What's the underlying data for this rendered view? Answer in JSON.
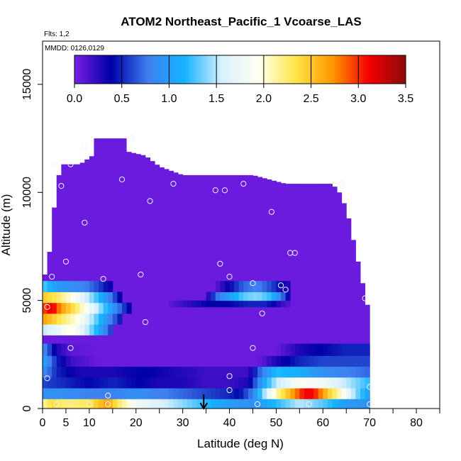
{
  "chart_data": {
    "type": "heatmap",
    "title": "ATOM2 Northeast_Pacific_1 Vcoarse_LAS",
    "flights_note": "Flts: 1,2",
    "dates_note": "MMDD: 0126,0129",
    "xlabel": "Latitude (deg N)",
    "ylabel": "Altitude (m)",
    "xlim": [
      0,
      85
    ],
    "ylim": [
      0,
      17000
    ],
    "x_ticks": [
      0,
      5,
      10,
      20,
      30,
      40,
      50,
      60,
      70,
      80
    ],
    "y_ticks": [
      0,
      5000,
      10000,
      15000
    ],
    "colorbar": {
      "min": 0,
      "max": 3.5,
      "ticks": [
        0.0,
        0.5,
        1.0,
        1.5,
        2.0,
        2.5,
        3.0,
        3.5
      ],
      "tick_labels": [
        "0.0",
        "0.5",
        "1.0",
        "1.5",
        "2.0",
        "2.5",
        "3.0",
        "3.5"
      ],
      "colors": [
        "#7b1fe6",
        "#0000a8",
        "#3f7ff0",
        "#14b4ff",
        "#d8f0ff",
        "#fffff0",
        "#ffe64b",
        "#ff9900",
        "#f40000",
        "#8c0a0a"
      ]
    },
    "top_profile": [
      [
        1,
        6200
      ],
      [
        2,
        8300
      ],
      [
        3,
        10300
      ],
      [
        4,
        11300
      ],
      [
        8,
        11300
      ],
      [
        12,
        11900
      ],
      [
        18,
        11900
      ],
      [
        22,
        11700
      ],
      [
        25,
        11200
      ],
      [
        30,
        10800
      ],
      [
        35,
        10800
      ],
      [
        40,
        10800
      ],
      [
        45,
        10800
      ],
      [
        52,
        10400
      ],
      [
        57,
        10400
      ],
      [
        62,
        10400
      ],
      [
        63.5,
        10000
      ],
      [
        64.5,
        9500
      ],
      [
        65.5,
        8800
      ],
      [
        66.5,
        7800
      ],
      [
        67.5,
        6800
      ],
      [
        68.5,
        5800
      ],
      [
        69.5,
        4800
      ],
      [
        70,
        3500
      ]
    ],
    "plateau": {
      "x": [
        11,
        18
      ],
      "top": 12500
    },
    "default_value": 0.05,
    "layers": [
      {
        "y": [
          0,
          450
        ],
        "x": [
          0,
          70
        ],
        "values": [
          [
            0,
            2.1
          ],
          [
            2,
            2.4
          ],
          [
            5,
            2.2
          ],
          [
            10,
            2.3
          ],
          [
            12,
            2.5
          ],
          [
            14,
            2.7
          ],
          [
            16,
            2.3
          ],
          [
            20,
            1.8
          ],
          [
            25,
            1.6
          ],
          [
            30,
            1.4
          ],
          [
            35,
            1.2
          ],
          [
            40,
            1.0
          ],
          [
            45,
            0.9
          ],
          [
            50,
            1.2
          ],
          [
            55,
            1.5
          ],
          [
            60,
            1.3
          ],
          [
            65,
            1.0
          ],
          [
            70,
            0.9
          ]
        ]
      },
      {
        "y": [
          450,
          950
        ],
        "x": [
          0,
          70
        ],
        "values": [
          [
            0,
            0.9
          ],
          [
            5,
            0.9
          ],
          [
            10,
            0.8
          ],
          [
            15,
            0.8
          ],
          [
            20,
            0.9
          ],
          [
            25,
            0.8
          ],
          [
            30,
            0.7
          ],
          [
            35,
            0.6
          ],
          [
            40,
            0.5
          ],
          [
            42,
            0.4
          ],
          [
            45,
            0.8
          ],
          [
            48,
            1.6
          ],
          [
            50,
            2.1
          ],
          [
            53,
            2.6
          ],
          [
            56,
            3.1
          ],
          [
            58,
            3.1
          ],
          [
            61,
            2.5
          ],
          [
            64,
            2.0
          ],
          [
            67,
            1.4
          ],
          [
            70,
            1.0
          ]
        ]
      },
      {
        "y": [
          950,
          1450
        ],
        "x": [
          0,
          70
        ],
        "values": [
          [
            0,
            0.6
          ],
          [
            5,
            0.5
          ],
          [
            10,
            0.4
          ],
          [
            15,
            0.5
          ],
          [
            20,
            0.4
          ],
          [
            25,
            0.3
          ],
          [
            30,
            0.3
          ],
          [
            35,
            0.2
          ],
          [
            40,
            0.2
          ],
          [
            44,
            0.3
          ],
          [
            47,
            1.0
          ],
          [
            50,
            1.5
          ],
          [
            55,
            1.9
          ],
          [
            60,
            1.8
          ],
          [
            65,
            1.5
          ],
          [
            70,
            1.2
          ]
        ]
      },
      {
        "y": [
          1450,
          1950
        ],
        "x": [
          0,
          70
        ],
        "values": [
          [
            0,
            0.9
          ],
          [
            3,
            0.5
          ],
          [
            8,
            0.3
          ],
          [
            15,
            0.3
          ],
          [
            22,
            0.4
          ],
          [
            28,
            0.3
          ],
          [
            35,
            0.2
          ],
          [
            40,
            0.2
          ],
          [
            44,
            0.2
          ],
          [
            47,
            0.8
          ],
          [
            50,
            1.2
          ],
          [
            55,
            1.1
          ],
          [
            60,
            0.9
          ],
          [
            65,
            0.8
          ],
          [
            70,
            0.7
          ]
        ]
      },
      {
        "y": [
          1950,
          2450
        ],
        "x": [
          0,
          70
        ],
        "values": [
          [
            0,
            1.1
          ],
          [
            3,
            0.5
          ],
          [
            6,
            0.2
          ],
          [
            12,
            0.05
          ],
          [
            35,
            0.05
          ],
          [
            46,
            0.05
          ],
          [
            50,
            0.3
          ],
          [
            55,
            0.5
          ],
          [
            60,
            0.6
          ],
          [
            65,
            0.6
          ],
          [
            70,
            0.6
          ]
        ]
      },
      {
        "y": [
          2450,
          3000
        ],
        "x": [
          0,
          70
        ],
        "values": [
          [
            0,
            0.9
          ],
          [
            3,
            0.3
          ],
          [
            6,
            0.1
          ],
          [
            12,
            0.05
          ],
          [
            50,
            0.05
          ],
          [
            55,
            0.3
          ],
          [
            60,
            0.4
          ],
          [
            65,
            0.5
          ],
          [
            70,
            0.5
          ]
        ]
      },
      {
        "y": [
          3400,
          3900
        ],
        "x": [
          0,
          15
        ],
        "values": [
          [
            0,
            1.5
          ],
          [
            3,
            1.7
          ],
          [
            6,
            2.0
          ],
          [
            9,
            1.6
          ],
          [
            12,
            1.1
          ],
          [
            15,
            0.5
          ]
        ]
      },
      {
        "y": [
          3900,
          4400
        ],
        "x": [
          0,
          17
        ],
        "values": [
          [
            0,
            2.7
          ],
          [
            2,
            2.5
          ],
          [
            5,
            2.2
          ],
          [
            8,
            1.9
          ],
          [
            11,
            1.4
          ],
          [
            14,
            0.9
          ],
          [
            17,
            0.4
          ]
        ]
      },
      {
        "y": [
          4400,
          4900
        ],
        "x": [
          0,
          19
        ],
        "values": [
          [
            0,
            2.9
          ],
          [
            2,
            3.2
          ],
          [
            4,
            2.7
          ],
          [
            7,
            2.3
          ],
          [
            10,
            1.8
          ],
          [
            13,
            1.3
          ],
          [
            16,
            0.8
          ],
          [
            19,
            0.3
          ]
        ]
      },
      {
        "y": [
          4900,
          5400
        ],
        "x": [
          0,
          17
        ],
        "values": [
          [
            0,
            2.5
          ],
          [
            3,
            2.3
          ],
          [
            6,
            2.0
          ],
          [
            9,
            1.6
          ],
          [
            12,
            1.2
          ],
          [
            15,
            0.7
          ],
          [
            17,
            0.3
          ]
        ]
      },
      {
        "y": [
          5400,
          5900
        ],
        "x": [
          0,
          15
        ],
        "values": [
          [
            0,
            1.3
          ],
          [
            3,
            1.0
          ],
          [
            6,
            0.9
          ],
          [
            9,
            0.8
          ],
          [
            12,
            0.6
          ],
          [
            15,
            0.3
          ]
        ]
      },
      {
        "y": [
          4700,
          5000
        ],
        "x": [
          27,
          53
        ],
        "values": [
          [
            27,
            0.1
          ],
          [
            30,
            0.2
          ],
          [
            33,
            0.3
          ],
          [
            36,
            0.4
          ],
          [
            40,
            0.4
          ],
          [
            44,
            0.5
          ],
          [
            48,
            0.5
          ],
          [
            50,
            0.3
          ],
          [
            53,
            0.1
          ]
        ]
      },
      {
        "y": [
          5000,
          5400
        ],
        "x": [
          35,
          53
        ],
        "values": [
          [
            35,
            0.1
          ],
          [
            37,
            0.7
          ],
          [
            40,
            1.0
          ],
          [
            43,
            1.3
          ],
          [
            46,
            1.4
          ],
          [
            49,
            1.2
          ],
          [
            51,
            0.8
          ],
          [
            53,
            0.3
          ]
        ]
      },
      {
        "y": [
          5400,
          5900
        ],
        "x": [
          37,
          53
        ],
        "values": [
          [
            37,
            0.1
          ],
          [
            40,
            0.4
          ],
          [
            43,
            0.7
          ],
          [
            46,
            0.8
          ],
          [
            49,
            0.6
          ],
          [
            52,
            0.3
          ]
        ]
      }
    ],
    "sample_points": [
      [
        2,
        6100
      ],
      [
        2.5,
        11300
      ],
      [
        4,
        10300
      ],
      [
        6,
        11300
      ],
      [
        9,
        12100
      ],
      [
        19,
        12500
      ],
      [
        9,
        8600
      ],
      [
        5,
        6800
      ],
      [
        1,
        4700
      ],
      [
        6,
        2800
      ],
      [
        1,
        1400
      ],
      [
        13,
        6000
      ],
      [
        14,
        600
      ],
      [
        14,
        200
      ],
      [
        17,
        10600
      ],
      [
        23,
        9600
      ],
      [
        21,
        6200
      ],
      [
        22,
        4000
      ],
      [
        28,
        10400
      ],
      [
        37,
        10100
      ],
      [
        39,
        10100
      ],
      [
        43,
        10400
      ],
      [
        38,
        6700
      ],
      [
        40,
        6100
      ],
      [
        49,
        9100
      ],
      [
        53,
        7200
      ],
      [
        54,
        7200
      ],
      [
        45,
        5800
      ],
      [
        51,
        5700
      ],
      [
        52,
        5500
      ],
      [
        69,
        5100
      ],
      [
        47,
        4400
      ],
      [
        45,
        2800
      ],
      [
        40,
        1500
      ],
      [
        40,
        850
      ],
      [
        46,
        200
      ],
      [
        57,
        200
      ],
      [
        64,
        10400
      ],
      [
        70,
        1000
      ],
      [
        70,
        200
      ],
      [
        3,
        200
      ],
      [
        10,
        200
      ],
      [
        21,
        200
      ]
    ],
    "arrow_x": 34.5
  }
}
